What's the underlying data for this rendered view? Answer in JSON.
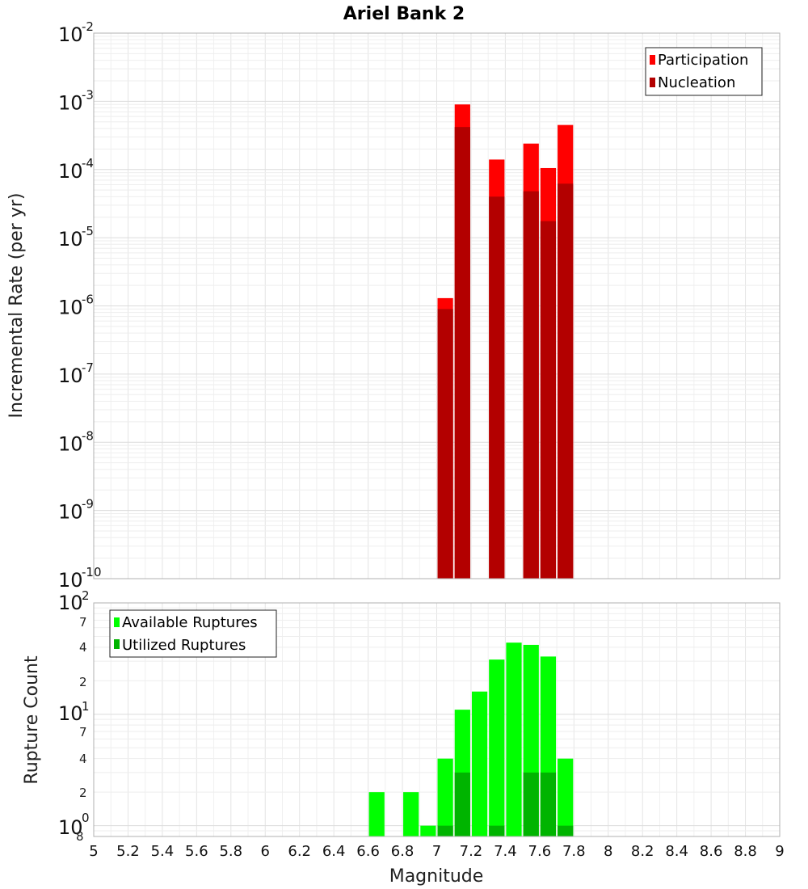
{
  "chart_data": [
    {
      "type": "bar",
      "title": "Ariel Bank 2",
      "ylabel": "Incremental Rate (per yr)",
      "yscale": "log",
      "ylim": [
        1e-10,
        0.01
      ],
      "ytick_bases": [
        "10",
        "10",
        "10",
        "10",
        "10",
        "10",
        "10",
        "10",
        "10"
      ],
      "ytick_exponents": [
        "-2",
        "-3",
        "-4",
        "-5",
        "-6",
        "-7",
        "-8",
        "-9",
        "-10"
      ],
      "grid": true,
      "legend_position": "top-right",
      "series": [
        {
          "name": "Participation",
          "color": "#ff0000",
          "x": [
            7.05,
            7.15,
            7.35,
            7.55,
            7.65,
            7.75
          ],
          "values": [
            1.3e-06,
            0.0009,
            0.00014,
            0.00024,
            0.000105,
            0.00045
          ]
        },
        {
          "name": "Nucleation",
          "color": "#b30000",
          "x": [
            7.05,
            7.15,
            7.35,
            7.55,
            7.65,
            7.75
          ],
          "values": [
            9e-07,
            0.00042,
            4e-05,
            4.8e-05,
            1.75e-05,
            6.2e-05
          ]
        }
      ]
    },
    {
      "type": "bar",
      "ylabel": "Rupture Count",
      "xlabel": "Magnitude",
      "yscale": "log",
      "ylim": [
        0.8,
        100
      ],
      "xlim": [
        5,
        9
      ],
      "xticks": [
        "5",
        "5.2",
        "5.4",
        "5.6",
        "5.8",
        "6",
        "6.2",
        "6.4",
        "6.6",
        "6.8",
        "7",
        "7.2",
        "7.4",
        "7.6",
        "7.8",
        "8",
        "8.2",
        "8.4",
        "8.6",
        "8.8",
        "9"
      ],
      "ytick_labels": {
        "top_base": "10",
        "top_exp": "2",
        "mid_base": "10",
        "mid_exp": "1",
        "bottom_base": "10",
        "bottom_exp": "0",
        "bottom_extra": "8",
        "minor": [
          "7",
          "4",
          "2",
          "7",
          "4",
          "2"
        ]
      },
      "grid": true,
      "legend_position": "top-left",
      "series": [
        {
          "name": "Available Ruptures",
          "color": "#00ff00",
          "x": [
            6.65,
            6.85,
            6.95,
            7.05,
            7.15,
            7.25,
            7.35,
            7.45,
            7.55,
            7.65,
            7.75
          ],
          "values": [
            2,
            2,
            1,
            4,
            11,
            16,
            31,
            44,
            42,
            33,
            4
          ]
        },
        {
          "name": "Utilized Ruptures",
          "color": "#00b400",
          "x": [
            7.05,
            7.15,
            7.35,
            7.55,
            7.65,
            7.75
          ],
          "values": [
            1,
            3,
            1,
            3,
            3,
            1
          ]
        }
      ]
    }
  ]
}
